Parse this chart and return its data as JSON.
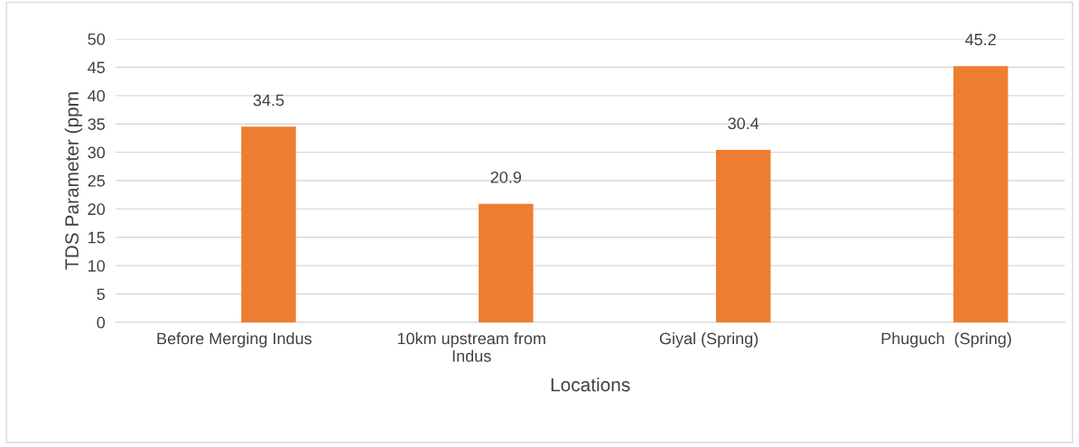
{
  "chart_data": {
    "type": "bar",
    "xlabel": "Locations",
    "ylabel": "TDS Parameter (ppm",
    "categories": [
      "Before Merging Indus",
      "10km upstream from\nIndus",
      "Giyal (Spring)",
      "Phuguch  (Spring)"
    ],
    "values": [
      34.5,
      20.9,
      30.4,
      45.2
    ],
    "color": "#ed7d31",
    "ylim": [
      0,
      50
    ],
    "yticks": [
      0,
      5,
      10,
      15,
      20,
      25,
      30,
      35,
      40,
      45,
      50
    ],
    "grid": "y",
    "data_labels": true
  }
}
